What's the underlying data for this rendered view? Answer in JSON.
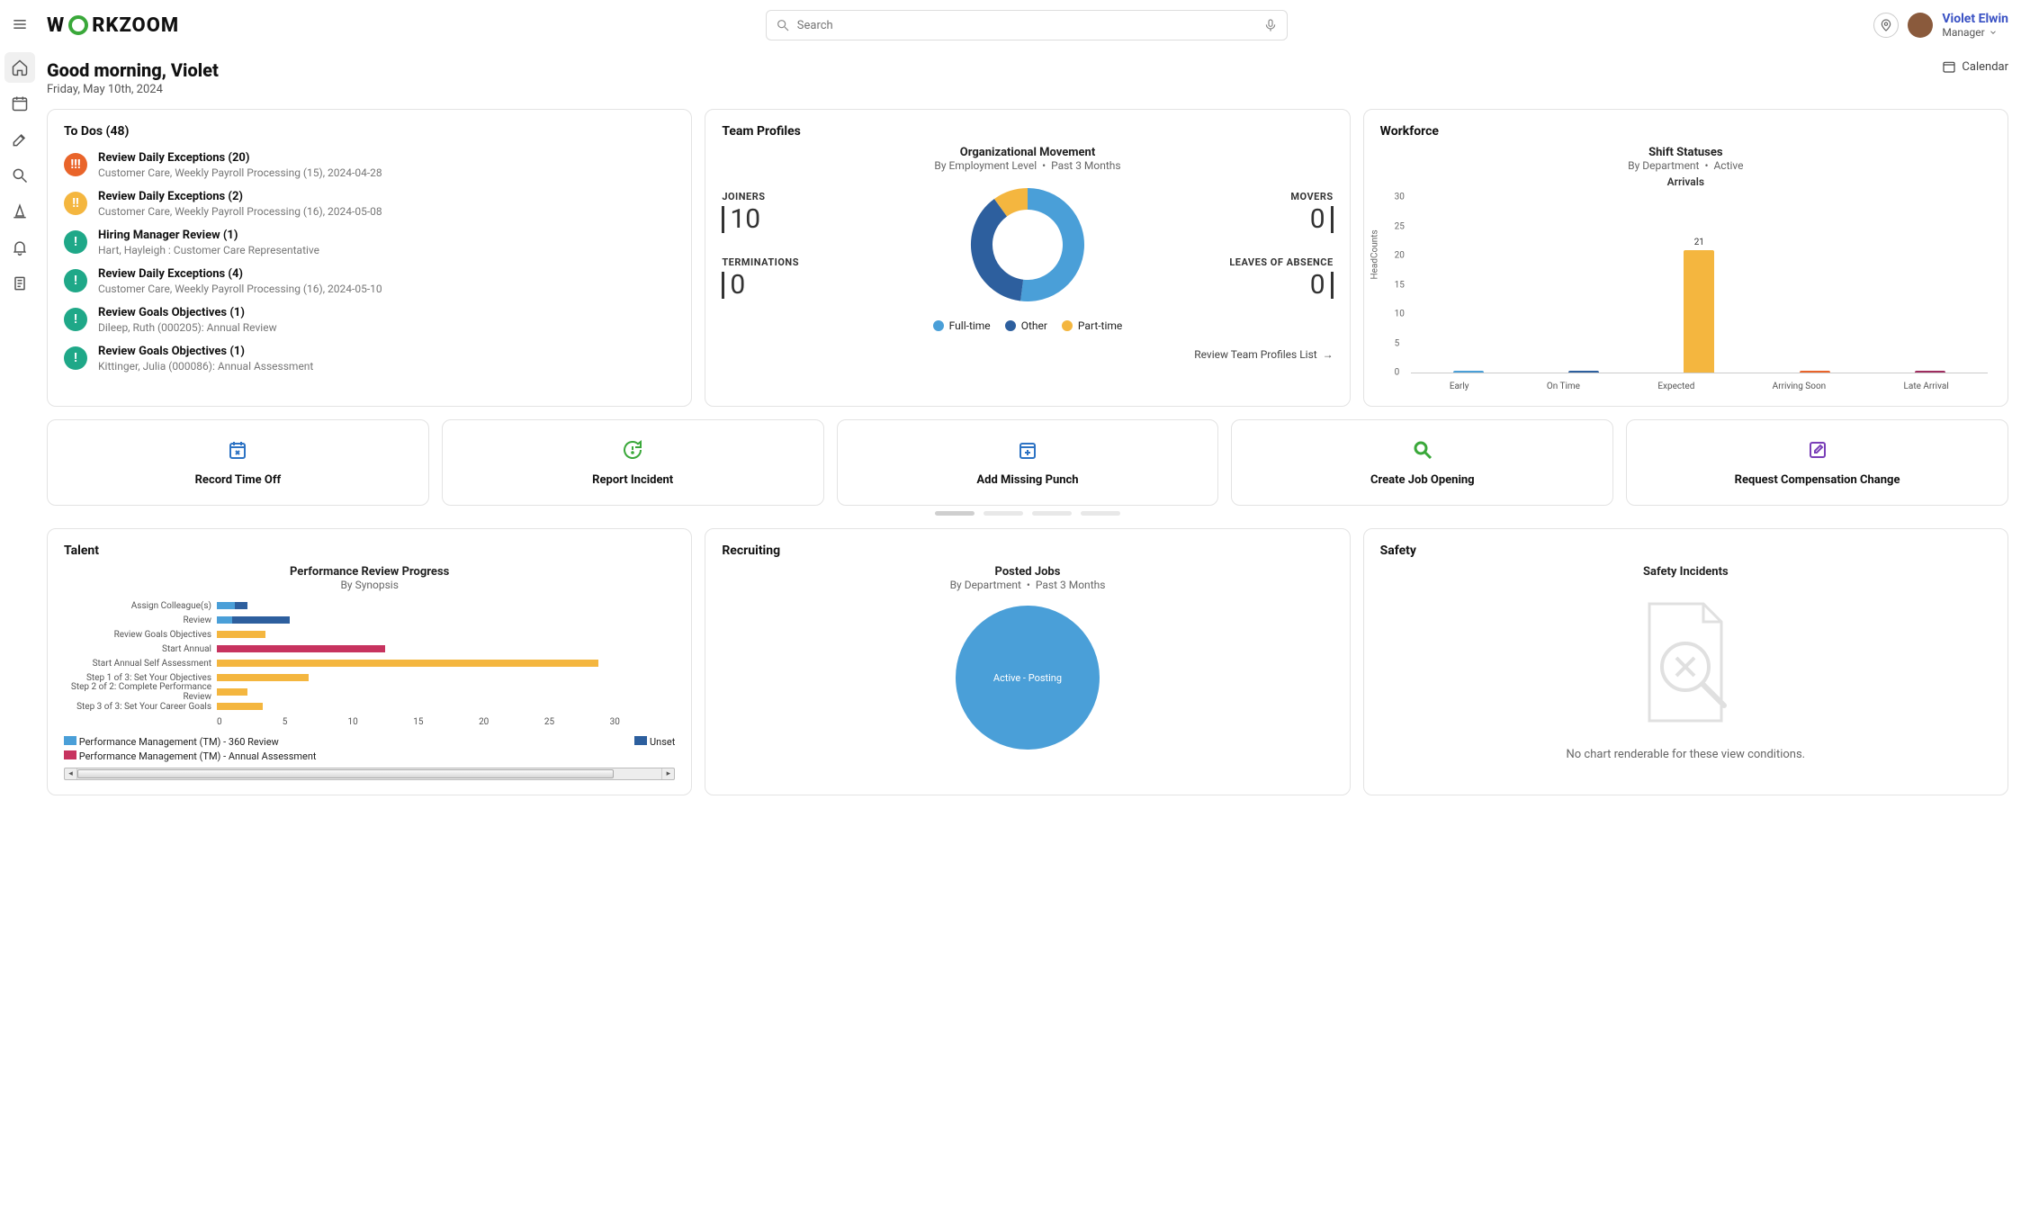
{
  "header": {
    "logo_text_pre": "W",
    "logo_text_post": "RKZOOM",
    "search_placeholder": "Search",
    "username": "Violet Elwin",
    "userrole": "Manager",
    "calendar_label": "Calendar"
  },
  "greeting": {
    "title": "Good morning, Violet",
    "date": "Friday, May 10th, 2024"
  },
  "todos": {
    "title": "To Dos (48)",
    "items": [
      {
        "badge": "!!!",
        "color": "#e9642a",
        "title": "Review Daily Exceptions (20)",
        "sub": "Customer Care, Weekly Payroll Processing (15), 2024-04-28"
      },
      {
        "badge": "!!",
        "color": "#f4b63f",
        "title": "Review Daily Exceptions (2)",
        "sub": "Customer Care, Weekly Payroll Processing (16), 2024-05-08"
      },
      {
        "badge": "!",
        "color": "#1fa888",
        "title": "Hiring Manager Review (1)",
        "sub": "Hart, Hayleigh : Customer Care Representative"
      },
      {
        "badge": "!",
        "color": "#1fa888",
        "title": "Review Daily Exceptions (4)",
        "sub": "Customer Care, Weekly Payroll Processing (16), 2024-05-10"
      },
      {
        "badge": "!",
        "color": "#1fa888",
        "title": "Review Goals Objectives (1)",
        "sub": "Dileep, Ruth (000205): Annual Review"
      },
      {
        "badge": "!",
        "color": "#1fa888",
        "title": "Review Goals Objectives (1)",
        "sub": "Kittinger, Julia (000086): Annual Assessment"
      }
    ]
  },
  "team_profiles": {
    "title": "Team Profiles",
    "subtitle": "Organizational Movement",
    "sub2_a": "By Employment Level",
    "sub2_b": "Past 3 Months",
    "joiners_label": "JOINERS",
    "joiners": "10",
    "terminations_label": "TERMINATIONS",
    "terminations": "0",
    "movers_label": "MOVERS",
    "movers": "0",
    "leaves_label": "LEAVES OF ABSENCE",
    "leaves": "0",
    "donut": {
      "slices": [
        {
          "label": "Full-time",
          "value": 52,
          "color": "#4a9fd8"
        },
        {
          "label": "Other",
          "value": 38,
          "color": "#2d5f9e"
        },
        {
          "label": "Part-time",
          "value": 10,
          "color": "#f4b63f"
        }
      ]
    },
    "legend": [
      {
        "label": "Full-time",
        "color": "#4a9fd8"
      },
      {
        "label": "Other",
        "color": "#2d5f9e"
      },
      {
        "label": "Part-time",
        "color": "#f4b63f"
      }
    ],
    "link": "Review Team Profiles List"
  },
  "workforce": {
    "title": "Workforce",
    "subtitle": "Shift Statuses",
    "sub2_a": "By Department",
    "sub2_b": "Active",
    "chart_title": "Arrivals",
    "ylabel": "HeadCounts",
    "ymax": 30,
    "ystep": 5,
    "categories": [
      "Early",
      "On Time",
      "Expected",
      "Arriving Soon",
      "Late Arrival"
    ],
    "values": [
      0.3,
      0.3,
      21,
      0.3,
      0.3
    ],
    "bar_colors": [
      "#4a9fd8",
      "#2d5f9e",
      "#f4b63f",
      "#e9642a",
      "#9e2d5f"
    ],
    "value_labels": [
      "",
      "",
      "21",
      "",
      ""
    ]
  },
  "actions": [
    {
      "label": "Record Time Off",
      "color": "#2d73c4"
    },
    {
      "label": "Report Incident",
      "color": "#3aa83a"
    },
    {
      "label": "Add Missing Punch",
      "color": "#2d73c4"
    },
    {
      "label": "Create Job Opening",
      "color": "#3aa83a"
    },
    {
      "label": "Request Compensation Change",
      "color": "#7a3fb8"
    }
  ],
  "talent": {
    "title": "Talent",
    "subtitle": "Performance Review Progress",
    "sub2": "By Synopsis",
    "xmax": 30,
    "xstep": 5,
    "rows": [
      {
        "label": "Assign Colleague(s)",
        "segs": [
          {
            "start": 0,
            "end": 1.2,
            "color": "#4a9fd8"
          },
          {
            "start": 1.2,
            "end": 2.0,
            "color": "#2d5f9e"
          }
        ]
      },
      {
        "label": "Review",
        "segs": [
          {
            "start": 0,
            "end": 1.0,
            "color": "#4a9fd8"
          },
          {
            "start": 1.0,
            "end": 4.8,
            "color": "#2d5f9e"
          }
        ]
      },
      {
        "label": "Review Goals Objectives",
        "segs": [
          {
            "start": 0,
            "end": 3.2,
            "color": "#f4b63f"
          }
        ]
      },
      {
        "label": "Start Annual",
        "segs": [
          {
            "start": 0,
            "end": 11.0,
            "color": "#c7335f"
          }
        ]
      },
      {
        "label": "Start Annual Self Assessment",
        "segs": [
          {
            "start": 0,
            "end": 25.0,
            "color": "#f4b63f"
          }
        ]
      },
      {
        "label": "Step 1 of 3: Set Your Objectives",
        "segs": [
          {
            "start": 0,
            "end": 6.0,
            "color": "#f4b63f"
          }
        ]
      },
      {
        "label": "Step 2 of 2: Complete Performance Review",
        "segs": [
          {
            "start": 0,
            "end": 2.0,
            "color": "#f4b63f"
          }
        ]
      },
      {
        "label": "Step 3 of 3: Set Your Career Goals",
        "segs": [
          {
            "start": 0,
            "end": 3.0,
            "color": "#f4b63f"
          }
        ]
      }
    ],
    "xticks": [
      "0",
      "5",
      "10",
      "15",
      "20",
      "25",
      "30"
    ],
    "legend": [
      {
        "label": "Performance Management (TM) - 360 Review",
        "color": "#4a9fd8"
      },
      {
        "label": "Unset",
        "color": "#2d5f9e"
      },
      {
        "label": "Performance Management (TM) - Annual Assessment",
        "color": "#c7335f"
      }
    ]
  },
  "recruiting": {
    "title": "Recruiting",
    "subtitle": "Posted Jobs",
    "sub2_a": "By Department",
    "sub2_b": "Past 3 Months",
    "bubble_label": "Active - Posting",
    "bubble_color": "#4a9fd8"
  },
  "safety": {
    "title": "Safety",
    "subtitle": "Safety Incidents",
    "message": "No chart renderable for these view conditions."
  }
}
